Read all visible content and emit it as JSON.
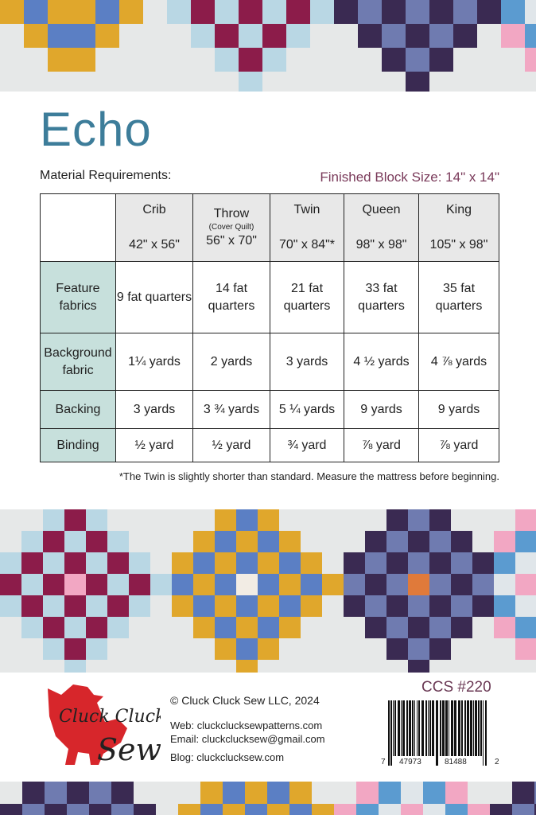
{
  "title": "Echo",
  "material_requirements_label": "Material Requirements:",
  "finished_block_size": "Finished Block Size:  14\" x 14\"",
  "table": {
    "columns": [
      {
        "name": "Crib",
        "sub": "",
        "size": "42\" x 56\""
      },
      {
        "name": "Throw",
        "sub": "(Cover Quilt)",
        "size": "56\" x 70\""
      },
      {
        "name": "Twin",
        "sub": "",
        "size": "70\" x 84\"*"
      },
      {
        "name": "Queen",
        "sub": "",
        "size": "98\" x 98\""
      },
      {
        "name": "King",
        "sub": "",
        "size": "105\" x 98\""
      }
    ],
    "rows": [
      {
        "label": "Feature fabrics",
        "cells": [
          "9 fat quarters",
          "14 fat quarters",
          "21 fat quarters",
          "33 fat quarters",
          "35 fat quarters"
        ]
      },
      {
        "label": "Background fabric",
        "cells": [
          "1¼ yards",
          "2 yards",
          "3 yards",
          "4 ½ yards",
          "4 ⅞ yards"
        ]
      },
      {
        "label": "Backing",
        "cells": [
          "3 yards",
          "3 ¾ yards",
          "5 ¼ yards",
          "9 yards",
          "9 yards"
        ]
      },
      {
        "label": "Binding",
        "cells": [
          "½ yard",
          "½ yard",
          "¾  yard",
          "⅞ yard",
          "⅞ yard"
        ]
      }
    ]
  },
  "note": "*The Twin is slightly shorter than standard. Measure the mattress before beginning.",
  "footer": {
    "logo_text": "Cluck Cluck Sew",
    "copyright": "© Cluck Cluck Sew LLC, 2024",
    "web": "Web: cluckclucksewpatterns.com",
    "email": "Email: cluckclucksew@gmail.com",
    "blog": "Blog:  cluckclucksew.com",
    "sku": "CCS #220",
    "barcode_digits": [
      "7",
      "47973",
      "81488",
      "2"
    ]
  },
  "colors": {
    "title": "#3d7d9a",
    "accent": "#7a3a5a",
    "label_bg": "#c7e0dc",
    "logo_red": "#d7262b"
  }
}
